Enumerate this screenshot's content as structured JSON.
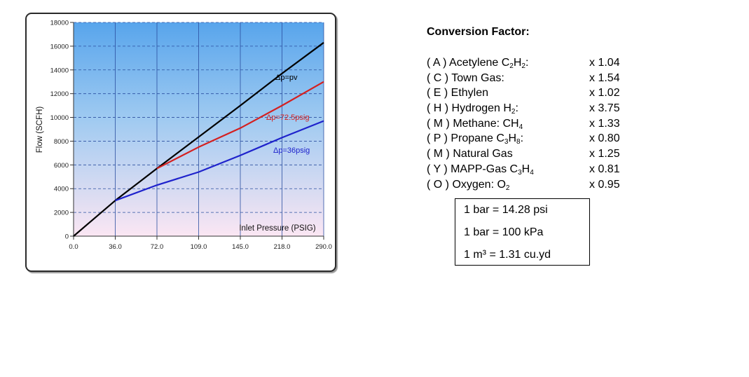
{
  "chart_data": {
    "type": "line",
    "title": "",
    "xlabel": "Inlet Pressure (PSIG)",
    "ylabel": "Flow  (SCFH)",
    "x_ticks": [
      "0.0",
      "36.0",
      "72.0",
      "109.0",
      "145.0",
      "218.0",
      "290.0"
    ],
    "y_ticks": [
      "0",
      "2000",
      "4000",
      "6000",
      "8000",
      "10000",
      "12000",
      "14000",
      "16000",
      "18000"
    ],
    "ylim": [
      0,
      18000
    ],
    "grid": true,
    "series": [
      {
        "name": "Δp=pv",
        "color": "#000000",
        "points": [
          [
            "0.0",
            0
          ],
          [
            "36.0",
            3000
          ],
          [
            "72.0",
            5700
          ],
          [
            "109.0",
            8350
          ],
          [
            "145.0",
            11000
          ],
          [
            "218.0",
            13700
          ],
          [
            "290.0",
            16300
          ]
        ]
      },
      {
        "name": "Δp=72.5psig",
        "color": "#d42020",
        "points": [
          [
            "72.0",
            5700
          ],
          [
            "109.0",
            7500
          ],
          [
            "145.0",
            9100
          ],
          [
            "218.0",
            11000
          ],
          [
            "290.0",
            13000
          ]
        ]
      },
      {
        "name": "Δp=36psig",
        "color": "#1e22cc",
        "points": [
          [
            "36.0",
            3000
          ],
          [
            "72.0",
            4300
          ],
          [
            "109.0",
            5400
          ],
          [
            "145.0",
            6800
          ],
          [
            "218.0",
            8300
          ],
          [
            "290.0",
            9700
          ]
        ]
      }
    ]
  },
  "conversion": {
    "title": "Conversion Factor:",
    "factors": [
      {
        "prefix": "( A ) Acetylene C",
        "formula": [
          [
            "2",
            "H"
          ],
          [
            "2",
            ":"
          ]
        ],
        "value": "x 1.04"
      },
      {
        "prefix": "( C ) Town Gas:",
        "formula": [],
        "value": "x 1.54"
      },
      {
        "prefix": "( E ) Ethylen",
        "formula": [],
        "value": "x 1.02"
      },
      {
        "prefix": "( H ) Hydrogen H",
        "formula": [
          [
            "2",
            ":"
          ]
        ],
        "value": "x 3.75"
      },
      {
        "prefix": "( M ) Methane: CH",
        "formula": [
          [
            "4",
            ""
          ]
        ],
        "value": "x 1.33"
      },
      {
        "prefix": "( P ) Propane C",
        "formula": [
          [
            "3",
            "H"
          ],
          [
            "8",
            ":"
          ]
        ],
        "value": "x 0.80"
      },
      {
        "prefix": "( M ) Natural Gas",
        "formula": [],
        "value": "x 1.25"
      },
      {
        "prefix": "( Y ) MAPP-Gas C",
        "formula": [
          [
            "3",
            "H"
          ],
          [
            "4",
            ""
          ]
        ],
        "value": "x 0.81"
      },
      {
        "prefix": "( O ) Oxygen: O",
        "formula": [
          [
            "2",
            ""
          ]
        ],
        "value": "x 0.95"
      }
    ]
  },
  "units": {
    "line1": "1 bar = 14.28 psi",
    "line2": "1 bar = 100 kPa",
    "line3": "1 m³ =  1.31 cu.yd"
  }
}
